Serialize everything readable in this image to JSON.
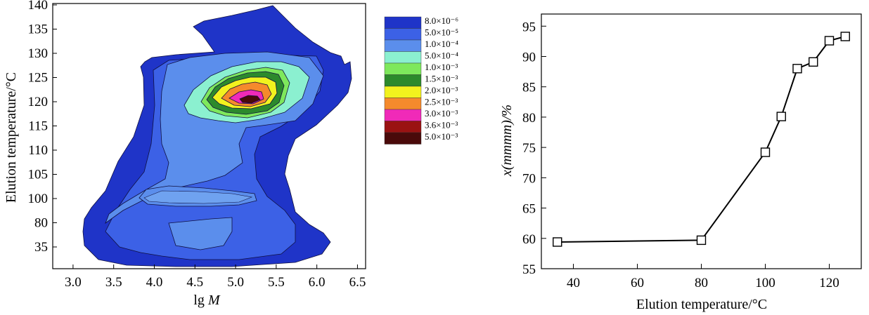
{
  "chart_data": [
    {
      "type": "heatmap",
      "xlabel": "lg M",
      "xlabel_parts": [
        "lg ",
        "M"
      ],
      "ylabel": "Elution temperature/°C",
      "x_ticks": [
        "3.0",
        "3.5",
        "4.0",
        "4.5",
        "5.0",
        "5.5",
        "6.0",
        "6.5"
      ],
      "x_values": [
        3.0,
        3.5,
        4.0,
        4.5,
        5.0,
        5.5,
        6.0,
        6.5
      ],
      "y_ticks": [
        "35",
        "80",
        "100",
        "105",
        "110",
        "115",
        "120",
        "125",
        "130",
        "135",
        "140"
      ],
      "xlim": [
        2.75,
        6.6
      ],
      "legend_position": "right",
      "levels": [
        {
          "label": "8.0×10⁻⁶",
          "color": "#1f34c8"
        },
        {
          "label": "5.0×10⁻⁵",
          "color": "#3c61e6"
        },
        {
          "label": "1.0×10⁻⁴",
          "color": "#5b8eec"
        },
        {
          "label": "5.0×10⁻⁴",
          "color": "#8bf0d0"
        },
        {
          "label": "1.0×10⁻³",
          "color": "#7ee85c"
        },
        {
          "label": "1.5×10⁻³",
          "color": "#2c8a2c"
        },
        {
          "label": "2.0×10⁻³",
          "color": "#f2f21e"
        },
        {
          "label": "2.5×10⁻³",
          "color": "#f58a2c"
        },
        {
          "label": "3.0×10⁻³",
          "color": "#f02ab8"
        },
        {
          "label": "3.6×10⁻³",
          "color": "#9a1212"
        },
        {
          "label": "5.0×10⁻³",
          "color": "#4a0a0a"
        }
      ]
    },
    {
      "type": "line",
      "xlabel": "Elution temperature/°C",
      "ylabel": "x(mmmm)/%",
      "x": [
        35,
        80,
        100,
        105,
        110,
        115,
        120,
        125
      ],
      "y": [
        59.4,
        59.7,
        74.2,
        80.1,
        88.0,
        89.1,
        92.6,
        93.3
      ],
      "xlim": [
        30,
        130
      ],
      "ylim": [
        55,
        97
      ],
      "x_ticks": [
        40,
        60,
        80,
        100,
        120
      ],
      "y_ticks": [
        55,
        60,
        65,
        70,
        75,
        80,
        85,
        90,
        95
      ],
      "grid": false,
      "marker": "open-square"
    }
  ]
}
